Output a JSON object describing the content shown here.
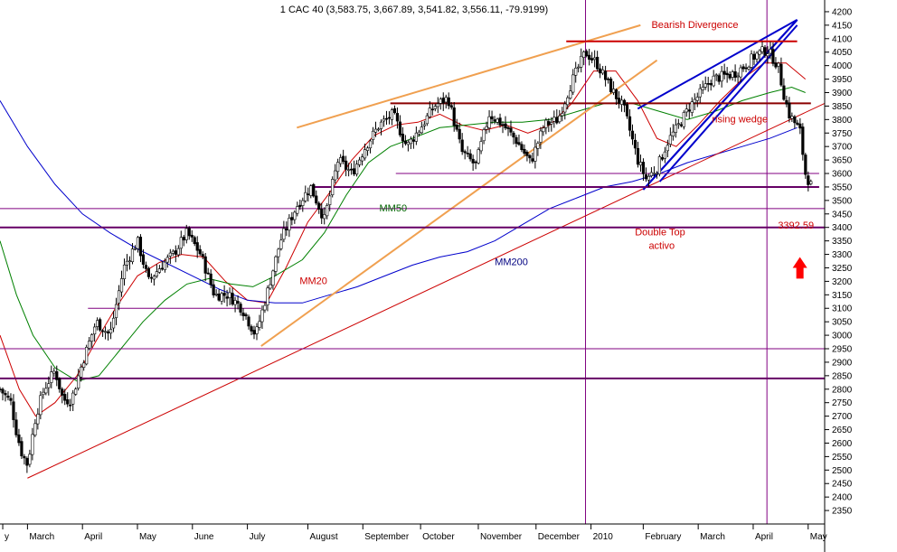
{
  "chart_data": {
    "type": "candlestick",
    "title": "1 CAC 40 (3,583.75, 3,667.89, 3,541.82, 3,556.11, -79.9199)",
    "ylim": [
      2300,
      4230
    ],
    "y_ticks": [
      2350,
      2400,
      2450,
      2500,
      2550,
      2600,
      2650,
      2700,
      2750,
      2800,
      2850,
      2900,
      2950,
      3000,
      3050,
      3100,
      3150,
      3200,
      3250,
      3300,
      3350,
      3400,
      3450,
      3500,
      3550,
      3600,
      3650,
      3700,
      3750,
      3800,
      3850,
      3900,
      3950,
      4000,
      4050,
      4100,
      4150,
      4200
    ],
    "x_range": [
      0,
      30
    ],
    "x_ticks": [
      {
        "label": "y",
        "x": 0.1
      },
      {
        "label": "March",
        "x": 1.0
      },
      {
        "label": "April",
        "x": 3.0
      },
      {
        "label": "May",
        "x": 5.0
      },
      {
        "label": "June",
        "x": 7.0
      },
      {
        "label": "July",
        "x": 9.0
      },
      {
        "label": "August",
        "x": 11.2
      },
      {
        "label": "September",
        "x": 13.2
      },
      {
        "label": "October",
        "x": 15.3
      },
      {
        "label": "November",
        "x": 17.4
      },
      {
        "label": "December",
        "x": 19.5
      },
      {
        "label": "2010",
        "x": 21.5
      },
      {
        "label": "February",
        "x": 23.4
      },
      {
        "label": "March",
        "x": 25.4
      },
      {
        "label": "April",
        "x": 27.4
      },
      {
        "label": "May",
        "x": 29.4
      }
    ],
    "price_path": [
      [
        0.0,
        2800
      ],
      [
        0.4,
        2750
      ],
      [
        0.6,
        2640
      ],
      [
        0.8,
        2560
      ],
      [
        1.0,
        2520
      ],
      [
        1.3,
        2700
      ],
      [
        1.6,
        2800
      ],
      [
        2.0,
        2870
      ],
      [
        2.3,
        2760
      ],
      [
        2.6,
        2760
      ],
      [
        3.0,
        2900
      ],
      [
        3.5,
        3050
      ],
      [
        4.0,
        3000
      ],
      [
        4.5,
        3250
      ],
      [
        5.0,
        3350
      ],
      [
        5.4,
        3200
      ],
      [
        5.8,
        3250
      ],
      [
        6.3,
        3300
      ],
      [
        6.8,
        3380
      ],
      [
        7.3,
        3300
      ],
      [
        7.8,
        3150
      ],
      [
        8.3,
        3150
      ],
      [
        8.8,
        3100
      ],
      [
        9.3,
        3000
      ],
      [
        9.7,
        3150
      ],
      [
        10.2,
        3350
      ],
      [
        10.8,
        3480
      ],
      [
        11.3,
        3550
      ],
      [
        11.8,
        3430
      ],
      [
        12.3,
        3650
      ],
      [
        12.8,
        3600
      ],
      [
        13.3,
        3700
      ],
      [
        13.8,
        3780
      ],
      [
        14.3,
        3820
      ],
      [
        14.8,
        3700
      ],
      [
        15.3,
        3770
      ],
      [
        15.8,
        3850
      ],
      [
        16.3,
        3880
      ],
      [
        16.8,
        3680
      ],
      [
        17.3,
        3630
      ],
      [
        17.8,
        3820
      ],
      [
        18.3,
        3780
      ],
      [
        18.8,
        3720
      ],
      [
        19.3,
        3640
      ],
      [
        19.8,
        3780
      ],
      [
        20.3,
        3800
      ],
      [
        20.8,
        3940
      ],
      [
        21.3,
        4050
      ],
      [
        21.7,
        4010
      ],
      [
        22.2,
        3920
      ],
      [
        22.7,
        3840
      ],
      [
        23.2,
        3650
      ],
      [
        23.5,
        3580
      ],
      [
        23.9,
        3620
      ],
      [
        24.3,
        3720
      ],
      [
        24.7,
        3780
      ],
      [
        25.1,
        3850
      ],
      [
        25.5,
        3900
      ],
      [
        25.9,
        3950
      ],
      [
        26.3,
        3960
      ],
      [
        26.7,
        3970
      ],
      [
        27.1,
        4000
      ],
      [
        27.5,
        4040
      ],
      [
        27.9,
        4060
      ],
      [
        28.3,
        4000
      ],
      [
        28.5,
        3900
      ],
      [
        28.7,
        3820
      ],
      [
        28.9,
        3790
      ],
      [
        29.1,
        3760
      ],
      [
        29.3,
        3600
      ],
      [
        29.5,
        3556
      ]
    ],
    "series": [
      {
        "name": "MM20",
        "color": "#cc0000",
        "points": [
          [
            0.0,
            3000
          ],
          [
            0.7,
            2800
          ],
          [
            1.3,
            2700
          ],
          [
            2.0,
            2750
          ],
          [
            2.8,
            2850
          ],
          [
            3.5,
            2980
          ],
          [
            4.2,
            3100
          ],
          [
            5.0,
            3220
          ],
          [
            5.8,
            3270
          ],
          [
            6.6,
            3300
          ],
          [
            7.4,
            3290
          ],
          [
            8.2,
            3200
          ],
          [
            9.0,
            3130
          ],
          [
            9.7,
            3120
          ],
          [
            10.4,
            3250
          ],
          [
            11.2,
            3420
          ],
          [
            12.0,
            3530
          ],
          [
            12.8,
            3650
          ],
          [
            13.6,
            3740
          ],
          [
            14.4,
            3780
          ],
          [
            15.2,
            3790
          ],
          [
            16.0,
            3820
          ],
          [
            16.8,
            3780
          ],
          [
            17.6,
            3760
          ],
          [
            18.4,
            3780
          ],
          [
            19.2,
            3750
          ],
          [
            20.0,
            3780
          ],
          [
            20.8,
            3860
          ],
          [
            21.6,
            3980
          ],
          [
            22.4,
            3980
          ],
          [
            23.2,
            3870
          ],
          [
            23.9,
            3730
          ],
          [
            24.6,
            3700
          ],
          [
            25.4,
            3780
          ],
          [
            26.2,
            3870
          ],
          [
            27.0,
            3950
          ],
          [
            27.8,
            4010
          ],
          [
            28.6,
            4010
          ],
          [
            29.3,
            3950
          ]
        ]
      },
      {
        "name": "MM50",
        "color": "#008000",
        "points": [
          [
            0.0,
            3350
          ],
          [
            0.6,
            3150
          ],
          [
            1.2,
            3000
          ],
          [
            2.0,
            2880
          ],
          [
            2.8,
            2830
          ],
          [
            3.6,
            2850
          ],
          [
            4.4,
            2950
          ],
          [
            5.2,
            3050
          ],
          [
            6.0,
            3130
          ],
          [
            6.8,
            3190
          ],
          [
            7.6,
            3210
          ],
          [
            8.4,
            3190
          ],
          [
            9.2,
            3180
          ],
          [
            10.0,
            3220
          ],
          [
            11.0,
            3280
          ],
          [
            11.8,
            3380
          ],
          [
            12.6,
            3520
          ],
          [
            13.4,
            3640
          ],
          [
            14.2,
            3700
          ],
          [
            15.0,
            3730
          ],
          [
            16.0,
            3770
          ],
          [
            17.0,
            3780
          ],
          [
            18.0,
            3790
          ],
          [
            19.0,
            3790
          ],
          [
            20.0,
            3800
          ],
          [
            21.0,
            3830
          ],
          [
            22.0,
            3860
          ],
          [
            23.0,
            3860
          ],
          [
            24.0,
            3830
          ],
          [
            25.0,
            3800
          ],
          [
            26.0,
            3830
          ],
          [
            27.0,
            3870
          ],
          [
            28.0,
            3900
          ],
          [
            28.8,
            3920
          ],
          [
            29.3,
            3900
          ]
        ]
      },
      {
        "name": "MM200",
        "color": "#0000cc",
        "points": [
          [
            0.0,
            3870
          ],
          [
            1.0,
            3700
          ],
          [
            2.0,
            3560
          ],
          [
            3.0,
            3450
          ],
          [
            4.0,
            3380
          ],
          [
            5.0,
            3320
          ],
          [
            6.0,
            3270
          ],
          [
            7.0,
            3220
          ],
          [
            8.0,
            3170
          ],
          [
            9.0,
            3130
          ],
          [
            10.0,
            3120
          ],
          [
            11.0,
            3120
          ],
          [
            12.0,
            3150
          ],
          [
            13.0,
            3180
          ],
          [
            14.0,
            3220
          ],
          [
            15.0,
            3260
          ],
          [
            16.0,
            3290
          ],
          [
            17.0,
            3310
          ],
          [
            18.0,
            3350
          ],
          [
            19.0,
            3410
          ],
          [
            20.0,
            3470
          ],
          [
            21.0,
            3510
          ],
          [
            22.0,
            3550
          ],
          [
            23.0,
            3570
          ],
          [
            24.0,
            3600
          ],
          [
            25.0,
            3640
          ],
          [
            26.0,
            3670
          ],
          [
            27.0,
            3700
          ],
          [
            28.0,
            3730
          ],
          [
            29.0,
            3770
          ]
        ]
      }
    ],
    "trendlines": [
      {
        "color": "#cc0000",
        "width": 1,
        "from": [
          1.0,
          2470
        ],
        "to": [
          30.0,
          3860
        ]
      },
      {
        "color": "#f0a050",
        "width": 2,
        "from": [
          10.8,
          3770
        ],
        "to": [
          23.3,
          4150
        ]
      },
      {
        "color": "#f0a050",
        "width": 2,
        "from": [
          9.5,
          2960
        ],
        "to": [
          23.9,
          4020
        ]
      },
      {
        "color": "#0000cc",
        "width": 2,
        "from": [
          23.4,
          3540
        ],
        "to": [
          29.0,
          4170
        ]
      },
      {
        "color": "#0000cc",
        "width": 2,
        "from": [
          23.4,
          3540
        ],
        "to": [
          29.0,
          4170
        ]
      },
      {
        "color": "#0000cc",
        "width": 2,
        "from": [
          24.0,
          3570
        ],
        "to": [
          29.0,
          4150
        ]
      },
      {
        "color": "#0000cc",
        "width": 2,
        "from": [
          23.2,
          3840
        ],
        "to": [
          29.0,
          4170
        ]
      },
      {
        "color": "#cc0000",
        "width": 2,
        "from": [
          20.6,
          4090
        ],
        "to": [
          29.0,
          4090
        ]
      },
      {
        "color": "#8b0000",
        "width": 2,
        "from": [
          14.2,
          3860
        ],
        "to": [
          29.5,
          3860
        ]
      },
      {
        "color": "#660066",
        "width": 2,
        "from": [
          11.4,
          3550
        ],
        "to": [
          29.8,
          3550
        ]
      },
      {
        "color": "#800080",
        "width": 1,
        "from": [
          14.4,
          3600
        ],
        "to": [
          29.8,
          3600
        ]
      },
      {
        "color": "#800080",
        "width": 1,
        "from": [
          0.0,
          3470
        ],
        "to": [
          30.0,
          3470
        ]
      },
      {
        "color": "#660066",
        "width": 2,
        "from": [
          0.0,
          3400
        ],
        "to": [
          30.0,
          3400
        ]
      },
      {
        "color": "#800080",
        "width": 1,
        "from": [
          3.2,
          3100
        ],
        "to": [
          9.5,
          3100
        ]
      },
      {
        "color": "#800080",
        "width": 1,
        "from": [
          0.0,
          2950
        ],
        "to": [
          30.0,
          2950
        ]
      },
      {
        "color": "#660066",
        "width": 2,
        "from": [
          0.0,
          2840
        ],
        "to": [
          30.0,
          2840
        ]
      }
    ],
    "vlines": [
      {
        "color": "#800080",
        "x": 21.3
      },
      {
        "color": "#800080",
        "x": 27.9
      }
    ],
    "annotations": [
      {
        "text": "Bearish Divergence",
        "color": "#cc0000",
        "x": 23.7,
        "y": 4140
      },
      {
        "text": "rising wedge",
        "color": "#cc0000",
        "x": 25.9,
        "y": 3790
      },
      {
        "text": "MM50",
        "color": "#006400",
        "x": 13.8,
        "y": 3460
      },
      {
        "text": "MM20",
        "color": "#cc0000",
        "x": 10.9,
        "y": 3190
      },
      {
        "text": "MM200",
        "color": "#000080",
        "x": 18.0,
        "y": 3260
      },
      {
        "text": "Double Top",
        "color": "#cc0000",
        "x": 23.1,
        "y": 3370
      },
      {
        "text": "activo",
        "color": "#cc0000",
        "x": 23.6,
        "y": 3320
      },
      {
        "text": "3392.59",
        "color": "#cc0000",
        "x": 28.3,
        "y": 3395
      }
    ],
    "arrow": {
      "color": "#ff0000",
      "x": 29.1,
      "y_base": 3210,
      "y_tip": 3290
    }
  }
}
